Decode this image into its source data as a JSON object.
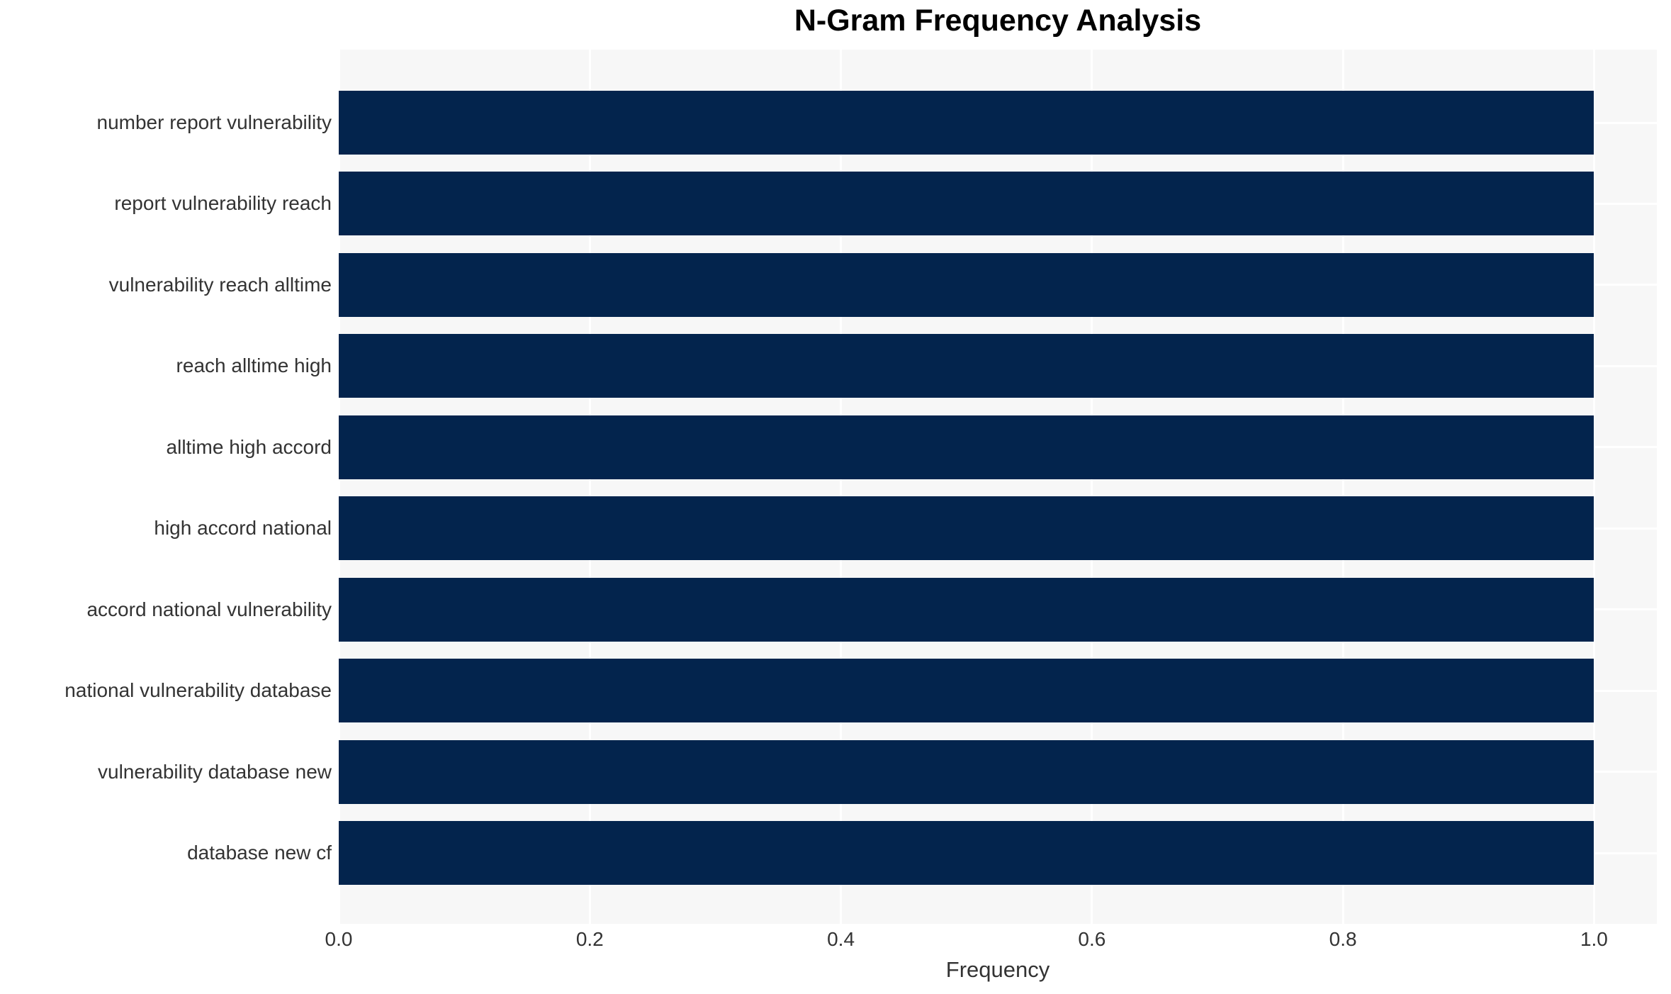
{
  "chart_data": {
    "type": "bar",
    "orientation": "horizontal",
    "title": "N-Gram Frequency Analysis",
    "xlabel": "Frequency",
    "ylabel": "",
    "categories": [
      "number report vulnerability",
      "report vulnerability reach",
      "vulnerability reach alltime",
      "reach alltime high",
      "alltime high accord",
      "high accord national",
      "accord national vulnerability",
      "national vulnerability database",
      "vulnerability database new",
      "database new cf"
    ],
    "values": [
      1.0,
      1.0,
      1.0,
      1.0,
      1.0,
      1.0,
      1.0,
      1.0,
      1.0,
      1.0
    ],
    "xticks": [
      "0.0",
      "0.2",
      "0.4",
      "0.6",
      "0.8",
      "1.0"
    ],
    "xtick_values": [
      0.0,
      0.2,
      0.4,
      0.6,
      0.8,
      1.0
    ],
    "xlim": [
      0,
      1.05
    ],
    "grid": true,
    "legend": false,
    "colors": {
      "bar": "#03244d",
      "plot_bg": "#f7f7f7",
      "grid": "#ffffff",
      "title_text": "#000000",
      "label_text": "#333333",
      "page_bg": "#ffffff"
    }
  }
}
